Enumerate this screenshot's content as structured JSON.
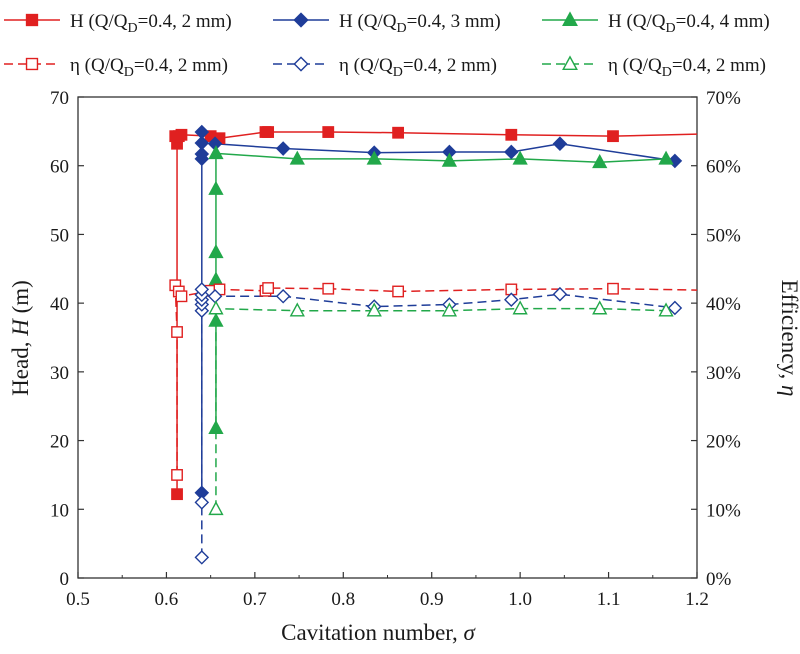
{
  "chart_data": {
    "type": "line",
    "xlabel": "Cavitation number, σ",
    "ylabel_left": "Head, H (m)",
    "ylabel_right": "Efficiency, η",
    "xlim": [
      0.5,
      1.2
    ],
    "ylim_left": [
      0,
      70
    ],
    "ylim_right": [
      0,
      70
    ],
    "x_ticks": [
      "0.5",
      "0.6",
      "0.7",
      "0.8",
      "0.9",
      "1.0",
      "1.1",
      "1.2"
    ],
    "y_ticks_left": [
      "0",
      "10",
      "20",
      "30",
      "40",
      "50",
      "60",
      "70"
    ],
    "y_ticks_right": [
      "0%",
      "10%",
      "20%",
      "30%",
      "40%",
      "50%",
      "60%",
      "70%"
    ],
    "grid": false,
    "legend_position": "top",
    "series": [
      {
        "name": "H (Q/QD=0.4, 2 mm)",
        "axis": "left",
        "color": "#e02020",
        "marker": "square",
        "filled": true,
        "dashed": false,
        "points": [
          [
            0.612,
            12.2
          ],
          [
            0.612,
            63.2
          ],
          [
            0.61,
            64.3
          ],
          [
            0.614,
            64.3
          ],
          [
            0.617,
            64.5
          ],
          [
            0.65,
            64.3
          ],
          [
            0.66,
            64.0
          ],
          [
            0.712,
            64.9
          ],
          [
            0.715,
            64.9
          ],
          [
            0.783,
            64.9
          ],
          [
            0.862,
            64.8
          ],
          [
            0.99,
            64.5
          ],
          [
            1.105,
            64.3
          ],
          [
            1.2,
            64.6
          ]
        ],
        "markers_drawn": [
          [
            0.612,
            12.2
          ],
          [
            0.612,
            63.2
          ],
          [
            0.61,
            64.3
          ],
          [
            0.614,
            64.3
          ],
          [
            0.617,
            64.5
          ],
          [
            0.65,
            64.3
          ],
          [
            0.66,
            64.0
          ],
          [
            0.712,
            64.9
          ],
          [
            0.715,
            64.9
          ],
          [
            0.783,
            64.9
          ],
          [
            0.862,
            64.8
          ],
          [
            0.99,
            64.5
          ],
          [
            1.105,
            64.3
          ]
        ]
      },
      {
        "name": "H (Q/QD=0.4, 3 mm)",
        "axis": "left",
        "color": "#1f3d99",
        "marker": "diamond",
        "filled": true,
        "dashed": false,
        "points": [
          [
            0.64,
            12.4
          ],
          [
            0.64,
            61.0
          ],
          [
            0.64,
            61.7
          ],
          [
            0.64,
            63.3
          ],
          [
            0.64,
            64.9
          ],
          [
            0.655,
            63.2
          ],
          [
            0.732,
            62.5
          ],
          [
            0.835,
            61.9
          ],
          [
            0.92,
            62.0
          ],
          [
            0.99,
            62.0
          ],
          [
            1.045,
            63.2
          ],
          [
            1.175,
            60.7
          ]
        ],
        "markers_drawn": [
          [
            0.64,
            12.4
          ],
          [
            0.64,
            61.0
          ],
          [
            0.64,
            61.7
          ],
          [
            0.64,
            63.3
          ],
          [
            0.64,
            64.9
          ],
          [
            0.655,
            63.2
          ],
          [
            0.732,
            62.5
          ],
          [
            0.835,
            61.9
          ],
          [
            0.92,
            62.0
          ],
          [
            0.99,
            62.0
          ],
          [
            1.045,
            63.2
          ],
          [
            1.175,
            60.7
          ]
        ]
      },
      {
        "name": "H (Q/QD=0.4, 4 mm)",
        "axis": "left",
        "color": "#22a84a",
        "marker": "triangle",
        "filled": true,
        "dashed": false,
        "points": [
          [
            0.656,
            21.8
          ],
          [
            0.656,
            37.4
          ],
          [
            0.656,
            43.4
          ],
          [
            0.656,
            47.4
          ],
          [
            0.656,
            56.6
          ],
          [
            0.656,
            61.8
          ],
          [
            0.748,
            61.0
          ],
          [
            0.835,
            61.0
          ],
          [
            0.92,
            60.7
          ],
          [
            1.0,
            61.0
          ],
          [
            1.09,
            60.5
          ],
          [
            1.165,
            61.0
          ]
        ],
        "markers_drawn": [
          [
            0.656,
            21.8
          ],
          [
            0.656,
            37.4
          ],
          [
            0.656,
            43.4
          ],
          [
            0.656,
            47.4
          ],
          [
            0.656,
            56.6
          ],
          [
            0.656,
            61.8
          ],
          [
            0.748,
            61.0
          ],
          [
            0.835,
            61.0
          ],
          [
            0.92,
            60.7
          ],
          [
            1.0,
            61.0
          ],
          [
            1.09,
            60.5
          ],
          [
            1.165,
            61.0
          ]
        ]
      },
      {
        "name": "η (Q/QD=0.4, 2 mm)",
        "axis": "right",
        "color": "#e02020",
        "marker": "square",
        "filled": false,
        "dashed": true,
        "points": [
          [
            0.612,
            15.0
          ],
          [
            0.612,
            35.8
          ],
          [
            0.61,
            42.6
          ],
          [
            0.614,
            41.7
          ],
          [
            0.617,
            41.0
          ],
          [
            0.65,
            41.8
          ],
          [
            0.66,
            42.0
          ],
          [
            0.712,
            41.8
          ],
          [
            0.715,
            42.2
          ],
          [
            0.783,
            42.1
          ],
          [
            0.862,
            41.7
          ],
          [
            0.99,
            42.0
          ],
          [
            1.105,
            42.1
          ],
          [
            1.2,
            41.9
          ]
        ],
        "markers_drawn": [
          [
            0.612,
            15.0
          ],
          [
            0.612,
            35.8
          ],
          [
            0.61,
            42.6
          ],
          [
            0.614,
            41.7
          ],
          [
            0.617,
            41.0
          ],
          [
            0.65,
            41.8
          ],
          [
            0.66,
            42.0
          ],
          [
            0.712,
            41.8
          ],
          [
            0.715,
            42.2
          ],
          [
            0.783,
            42.1
          ],
          [
            0.862,
            41.7
          ],
          [
            0.99,
            42.0
          ],
          [
            1.105,
            42.1
          ]
        ]
      },
      {
        "name": "η (Q/QD=0.4, 2 mm)",
        "axis": "right",
        "color": "#1f3d99",
        "marker": "diamond",
        "filled": false,
        "dashed": true,
        "points": [
          [
            0.64,
            3.0
          ],
          [
            0.64,
            11.0
          ],
          [
            0.64,
            38.9
          ],
          [
            0.64,
            39.8
          ],
          [
            0.64,
            40.5
          ],
          [
            0.64,
            41.2
          ],
          [
            0.64,
            42.0
          ],
          [
            0.655,
            41.0
          ],
          [
            0.732,
            41.0
          ],
          [
            0.835,
            39.5
          ],
          [
            0.92,
            39.8
          ],
          [
            0.99,
            40.5
          ],
          [
            1.045,
            41.3
          ],
          [
            1.175,
            39.3
          ]
        ],
        "markers_drawn": [
          [
            0.64,
            3.0
          ],
          [
            0.64,
            11.0
          ],
          [
            0.64,
            38.9
          ],
          [
            0.64,
            39.8
          ],
          [
            0.64,
            40.5
          ],
          [
            0.64,
            41.2
          ],
          [
            0.64,
            42.0
          ],
          [
            0.655,
            41.0
          ],
          [
            0.732,
            41.0
          ],
          [
            0.835,
            39.5
          ],
          [
            0.92,
            39.8
          ],
          [
            0.99,
            40.5
          ],
          [
            1.045,
            41.3
          ],
          [
            1.175,
            39.3
          ]
        ]
      },
      {
        "name": "η (Q/QD=0.4, 2 mm)",
        "axis": "right",
        "color": "#22a84a",
        "marker": "triangle",
        "filled": false,
        "dashed": true,
        "points": [
          [
            0.656,
            10.0
          ],
          [
            0.656,
            39.2
          ],
          [
            0.748,
            38.9
          ],
          [
            0.835,
            38.9
          ],
          [
            0.92,
            38.9
          ],
          [
            1.0,
            39.2
          ],
          [
            1.09,
            39.2
          ],
          [
            1.165,
            38.9
          ]
        ],
        "markers_drawn": [
          [
            0.656,
            10.0
          ],
          [
            0.656,
            39.2
          ],
          [
            0.748,
            38.9
          ],
          [
            0.835,
            38.9
          ],
          [
            0.92,
            38.9
          ],
          [
            1.0,
            39.2
          ],
          [
            1.09,
            39.2
          ],
          [
            1.165,
            38.9
          ]
        ]
      }
    ],
    "legend": [
      {
        "series": 0,
        "prefix": "H (Q/Q",
        "sub": "D",
        "suffix": "=0.4, 2 mm)"
      },
      {
        "series": 1,
        "prefix": "H (Q/Q",
        "sub": "D",
        "suffix": "=0.4, 3 mm)"
      },
      {
        "series": 2,
        "prefix": "H (Q/Q",
        "sub": "D",
        "suffix": "=0.4, 4 mm)"
      },
      {
        "series": 3,
        "prefix": "η (Q/Q",
        "sub": "D",
        "suffix": "=0.4, 2 mm)"
      },
      {
        "series": 4,
        "prefix": "η (Q/Q",
        "sub": "D",
        "suffix": "=0.4, 2 mm)"
      },
      {
        "series": 5,
        "prefix": "η (Q/Q",
        "sub": "D",
        "suffix": "=0.4, 2 mm)"
      }
    ]
  }
}
